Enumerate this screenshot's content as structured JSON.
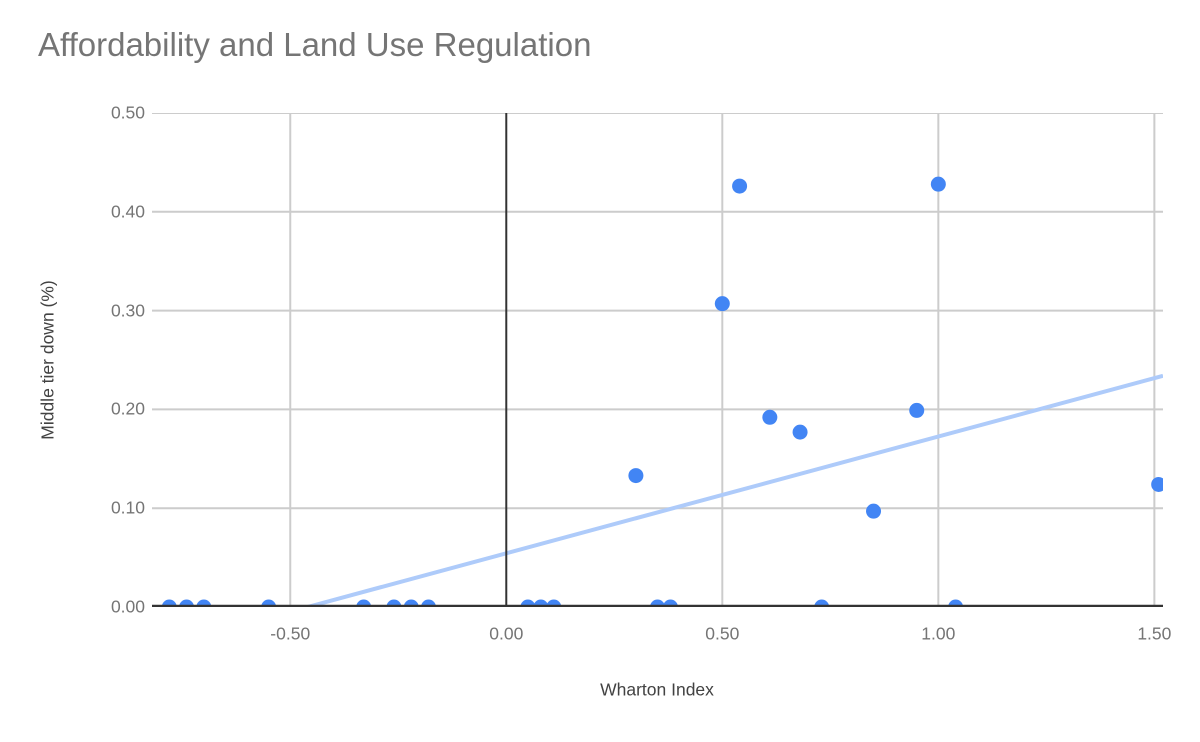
{
  "title": "Affordability and Land Use Regulation",
  "colors": {
    "background": "#ffffff",
    "title": "#757575",
    "tick_label": "#757575",
    "axis_title": "#424242",
    "gridline": "#cccccc",
    "axis_line": "#333333",
    "point": "#4285f4",
    "trendline": "#aecbfa"
  },
  "chart_data": {
    "type": "scatter",
    "title": "Affordability and Land Use Regulation",
    "xlabel": "Wharton Index",
    "ylabel": "Middle tier down (%)",
    "xlim": [
      -0.82,
      1.52
    ],
    "ylim": [
      0,
      0.5
    ],
    "x_ticks": [
      -0.5,
      0,
      0.5,
      1,
      1.5
    ],
    "x_tick_labels": [
      "-0.50",
      "0.00",
      "0.50",
      "1.00",
      "1.50"
    ],
    "y_ticks": [
      0,
      0.1,
      0.2,
      0.3,
      0.4,
      0.5
    ],
    "y_tick_labels": [
      "0.00",
      "0.10",
      "0.20",
      "0.30",
      "0.40",
      "0.50"
    ],
    "grid": true,
    "legend": false,
    "series": [
      {
        "points": [
          [
            -0.78,
            0
          ],
          [
            -0.74,
            0
          ],
          [
            -0.7,
            0
          ],
          [
            -0.55,
            0
          ],
          [
            -0.33,
            0
          ],
          [
            -0.26,
            0
          ],
          [
            -0.22,
            0
          ],
          [
            -0.18,
            0
          ],
          [
            0.05,
            0
          ],
          [
            0.08,
            0
          ],
          [
            0.11,
            0
          ],
          [
            0.35,
            0
          ],
          [
            0.38,
            0
          ],
          [
            0.73,
            0
          ],
          [
            1.04,
            0
          ],
          [
            0.3,
            0.133
          ],
          [
            0.5,
            0.307
          ],
          [
            0.54,
            0.426
          ],
          [
            0.61,
            0.192
          ],
          [
            0.68,
            0.177
          ],
          [
            0.85,
            0.097
          ],
          [
            0.95,
            0.199
          ],
          [
            1.0,
            0.428
          ],
          [
            1.51,
            0.124
          ]
        ]
      }
    ],
    "trendline": {
      "x1": -0.46,
      "y1": 0.0,
      "x2": 1.52,
      "y2": 0.234
    }
  }
}
